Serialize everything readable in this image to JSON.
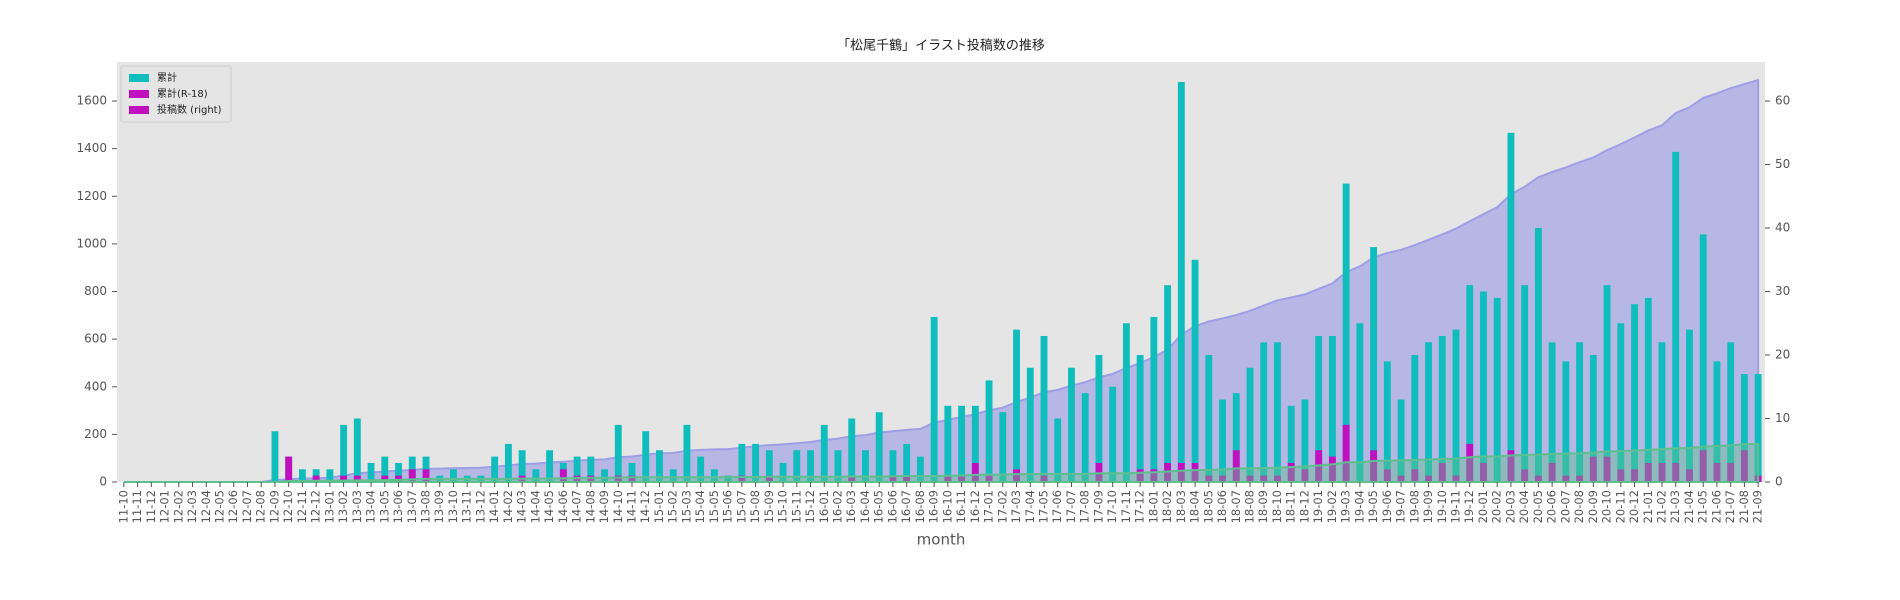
{
  "chart_data": {
    "type": "bar",
    "title": "「松尾千鶴」イラスト投稿数の推移",
    "x_label": "month",
    "categories": [
      "11-10",
      "11-11",
      "11-12",
      "12-01",
      "12-02",
      "12-03",
      "12-04",
      "12-05",
      "12-06",
      "12-07",
      "12-08",
      "12-09",
      "12-10",
      "12-11",
      "12-12",
      "13-01",
      "13-02",
      "13-03",
      "13-04",
      "13-05",
      "13-06",
      "13-07",
      "13-08",
      "13-09",
      "13-10",
      "13-11",
      "13-12",
      "14-01",
      "14-02",
      "14-03",
      "14-04",
      "14-05",
      "14-06",
      "14-07",
      "14-08",
      "14-09",
      "14-10",
      "14-11",
      "14-12",
      "15-01",
      "15-02",
      "15-03",
      "15-04",
      "15-05",
      "15-06",
      "15-07",
      "15-08",
      "15-09",
      "15-10",
      "15-11",
      "15-12",
      "16-01",
      "16-02",
      "16-03",
      "16-04",
      "16-05",
      "16-06",
      "16-07",
      "16-08",
      "16-09",
      "16-10",
      "16-11",
      "16-12",
      "17-01",
      "17-02",
      "17-03",
      "17-04",
      "17-05",
      "17-06",
      "17-07",
      "17-08",
      "17-09",
      "17-10",
      "17-11",
      "17-12",
      "18-01",
      "18-02",
      "18-03",
      "18-04",
      "18-05",
      "18-06",
      "18-07",
      "18-08",
      "18-09",
      "18-10",
      "18-11",
      "18-12",
      "19-01",
      "19-02",
      "19-03",
      "19-04",
      "19-05",
      "19-06",
      "19-07",
      "19-08",
      "19-09",
      "19-10",
      "19-11",
      "19-12",
      "20-01",
      "20-02",
      "20-03",
      "20-04",
      "20-05",
      "20-06",
      "20-07",
      "20-08",
      "20-09",
      "20-10",
      "20-11",
      "20-12",
      "21-01",
      "21-02",
      "21-03",
      "21-04",
      "21-05",
      "21-06",
      "21-07",
      "21-08",
      "21-09"
    ],
    "areas": [
      {
        "color": "#9e9ee6",
        "values": [
          0,
          0,
          0,
          0,
          0,
          0,
          0,
          0,
          0,
          0,
          0,
          8,
          12,
          14,
          16,
          18,
          27,
          37,
          40,
          44,
          47,
          51,
          55,
          56,
          58,
          59,
          60,
          64,
          70,
          75,
          77,
          82,
          85,
          89,
          93,
          95,
          104,
          107,
          115,
          120,
          122,
          131,
          135,
          137,
          138,
          144,
          150,
          155,
          158,
          163,
          168,
          177,
          182,
          192,
          197,
          208,
          213,
          219,
          223,
          249,
          261,
          273,
          285,
          301,
          312,
          336,
          354,
          377,
          387,
          405,
          419,
          439,
          454,
          479,
          499,
          525,
          556,
          619,
          654,
          674,
          687,
          701,
          719,
          741,
          763,
          775,
          788,
          811,
          834,
          881,
          906,
          943,
          962,
          975,
          995,
          1017,
          1040,
          1064,
          1095,
          1125,
          1154,
          1209,
          1240,
          1280,
          1302,
          1321,
          1343,
          1363,
          1394,
          1419,
          1447,
          1476,
          1498,
          1550,
          1574,
          1613,
          1632,
          1654,
          1671,
          1688
        ]
      },
      {
        "color": "#5fbf8f",
        "values": [
          0,
          0,
          0,
          0,
          0,
          0,
          0,
          0,
          0,
          0,
          0,
          0,
          4,
          4,
          5,
          5,
          6,
          7,
          7,
          8,
          9,
          11,
          13,
          13,
          13,
          13,
          13,
          13,
          13,
          14,
          14,
          14,
          16,
          17,
          18,
          18,
          19,
          20,
          20,
          20,
          20,
          20,
          20,
          20,
          20,
          21,
          21,
          22,
          22,
          22,
          22,
          22,
          22,
          23,
          23,
          23,
          24,
          25,
          25,
          25,
          26,
          27,
          30,
          31,
          31,
          33,
          33,
          34,
          34,
          34,
          34,
          37,
          37,
          37,
          39,
          41,
          44,
          47,
          50,
          51,
          52,
          57,
          58,
          59,
          60,
          63,
          65,
          70,
          74,
          83,
          83,
          88,
          90,
          91,
          93,
          94,
          97,
          98,
          104,
          107,
          107,
          112,
          114,
          115,
          118,
          119,
          120,
          124,
          128,
          130,
          132,
          135,
          138,
          141,
          143,
          148,
          151,
          154,
          159,
          160
        ]
      }
    ],
    "series": [
      {
        "color": "#10bdbd",
        "axis": "y2",
        "values": [
          0,
          0,
          0,
          0,
          0,
          0,
          0,
          0,
          0,
          0,
          0,
          8,
          4,
          2,
          2,
          2,
          9,
          10,
          3,
          4,
          3,
          4,
          4,
          1,
          2,
          1,
          1,
          4,
          6,
          5,
          2,
          5,
          3,
          4,
          4,
          2,
          9,
          3,
          8,
          5,
          2,
          9,
          4,
          2,
          1,
          6,
          6,
          5,
          3,
          5,
          5,
          9,
          5,
          10,
          5,
          11,
          5,
          6,
          4,
          26,
          12,
          12,
          12,
          16,
          11,
          24,
          18,
          23,
          10,
          18,
          14,
          20,
          15,
          25,
          20,
          26,
          31,
          63,
          35,
          20,
          13,
          14,
          18,
          22,
          22,
          12,
          13,
          23,
          23,
          47,
          25,
          37,
          19,
          13,
          20,
          22,
          23,
          24,
          31,
          30,
          29,
          55,
          31,
          40,
          22,
          19,
          22,
          20,
          31,
          25,
          28,
          29,
          22,
          52,
          24,
          39,
          19,
          22,
          17,
          17
        ]
      },
      {
        "color": "#c010c0",
        "axis": "y2",
        "values": [
          0,
          0,
          0,
          0,
          0,
          0,
          0,
          0,
          0,
          0,
          0,
          0,
          4,
          0,
          1,
          0,
          1,
          1,
          0,
          1,
          1,
          2,
          2,
          0,
          0,
          0,
          0,
          0,
          0,
          1,
          0,
          0,
          2,
          1,
          1,
          0,
          1,
          1,
          0,
          0,
          0,
          0,
          0,
          0,
          0,
          1,
          0,
          1,
          0,
          0,
          0,
          0,
          0,
          1,
          0,
          0,
          1,
          1,
          0,
          0,
          1,
          1,
          3,
          1,
          0,
          2,
          0,
          1,
          0,
          0,
          0,
          3,
          0,
          0,
          2,
          2,
          3,
          3,
          3,
          1,
          1,
          5,
          1,
          1,
          1,
          3,
          2,
          5,
          4,
          9,
          0,
          5,
          2,
          1,
          2,
          1,
          3,
          1,
          6,
          3,
          0,
          5,
          2,
          1,
          3,
          1,
          1,
          4,
          4,
          2,
          2,
          3,
          3,
          3,
          2,
          5,
          3,
          3,
          5,
          1
        ]
      }
    ],
    "legend": [
      {
        "name": "累計",
        "color": "#10bdbd"
      },
      {
        "name": "累計(R-18)",
        "color": "#c010c0"
      },
      {
        "name": "投稿数 (right)",
        "color": "#c010c0"
      }
    ],
    "legend_position": "upper left",
    "ylim": [
      0,
      1764
    ],
    "yticks": [
      0,
      200,
      400,
      600,
      800,
      1000,
      1200,
      1400,
      1600
    ],
    "y2lim": [
      0,
      66.15
    ],
    "y2ticks": [
      0,
      10,
      20,
      30,
      40,
      50,
      60
    ],
    "plot_background": "#e5e5e5"
  }
}
